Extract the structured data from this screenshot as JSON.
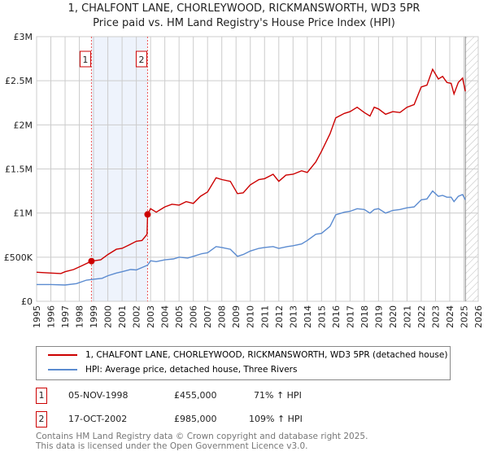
{
  "title": "1, CHALFONT LANE, CHORLEYWOOD, RICKMANSWORTH, WD3 5PR",
  "subtitle": "Price paid vs. HM Land Registry's House Price Index (HPI)",
  "colors": {
    "property": "#cc0000",
    "hpi": "#5b8bd0",
    "shade": "#eef3fc",
    "grid": "#cccccc"
  },
  "chart_data": {
    "type": "line",
    "xlim": [
      1995,
      2026
    ],
    "ylim": [
      0,
      3000000
    ],
    "x_ticks": [
      "1995",
      "1996",
      "1997",
      "1998",
      "1999",
      "2000",
      "2001",
      "2002",
      "2003",
      "2004",
      "2005",
      "2006",
      "2007",
      "2008",
      "2009",
      "2010",
      "2011",
      "2012",
      "2013",
      "2014",
      "2015",
      "2016",
      "2017",
      "2018",
      "2019",
      "2020",
      "2021",
      "2022",
      "2023",
      "2024",
      "2025",
      "2026"
    ],
    "y_ticks": [
      {
        "v": 0,
        "label": "£0"
      },
      {
        "v": 500000,
        "label": "£500K"
      },
      {
        "v": 1000000,
        "label": "£1M"
      },
      {
        "v": 1500000,
        "label": "£1.5M"
      },
      {
        "v": 2000000,
        "label": "£2M"
      },
      {
        "v": 2500000,
        "label": "£2.5M"
      },
      {
        "v": 3000000,
        "label": "£3M"
      }
    ],
    "shaded_range": [
      1998.85,
      2002.79
    ],
    "forecast_from": 2025.1,
    "series": [
      {
        "name": "1, CHALFONT LANE, CHORLEYWOOD, RICKMANSWORTH, WD3 5PR (detached house)",
        "color": "#cc0000",
        "points": [
          [
            1995,
            330000
          ],
          [
            1996,
            320000
          ],
          [
            1996.7,
            315000
          ],
          [
            1997,
            335000
          ],
          [
            1997.6,
            360000
          ],
          [
            1998.2,
            405000
          ],
          [
            1998.85,
            455000
          ],
          [
            1999.5,
            470000
          ],
          [
            2000,
            530000
          ],
          [
            2000.6,
            590000
          ],
          [
            2001,
            600000
          ],
          [
            2001.5,
            640000
          ],
          [
            2002,
            680000
          ],
          [
            2002.4,
            690000
          ],
          [
            2002.75,
            760000
          ],
          [
            2002.79,
            985000
          ],
          [
            2003,
            1050000
          ],
          [
            2003.4,
            1010000
          ],
          [
            2004,
            1070000
          ],
          [
            2004.5,
            1100000
          ],
          [
            2005,
            1090000
          ],
          [
            2005.5,
            1130000
          ],
          [
            2006,
            1110000
          ],
          [
            2006.5,
            1190000
          ],
          [
            2007,
            1240000
          ],
          [
            2007.6,
            1400000
          ],
          [
            2008,
            1380000
          ],
          [
            2008.6,
            1360000
          ],
          [
            2009.1,
            1220000
          ],
          [
            2009.5,
            1230000
          ],
          [
            2010,
            1320000
          ],
          [
            2010.6,
            1380000
          ],
          [
            2011,
            1390000
          ],
          [
            2011.6,
            1440000
          ],
          [
            2012,
            1360000
          ],
          [
            2012.5,
            1430000
          ],
          [
            2013,
            1440000
          ],
          [
            2013.6,
            1480000
          ],
          [
            2014,
            1460000
          ],
          [
            2014.6,
            1580000
          ],
          [
            2015,
            1700000
          ],
          [
            2015.6,
            1900000
          ],
          [
            2016,
            2080000
          ],
          [
            2016.6,
            2130000
          ],
          [
            2017,
            2150000
          ],
          [
            2017.5,
            2200000
          ],
          [
            2018,
            2140000
          ],
          [
            2018.4,
            2100000
          ],
          [
            2018.7,
            2200000
          ],
          [
            2019,
            2180000
          ],
          [
            2019.5,
            2120000
          ],
          [
            2020,
            2150000
          ],
          [
            2020.5,
            2140000
          ],
          [
            2021,
            2200000
          ],
          [
            2021.5,
            2230000
          ],
          [
            2022,
            2430000
          ],
          [
            2022.4,
            2450000
          ],
          [
            2022.8,
            2630000
          ],
          [
            2023.2,
            2520000
          ],
          [
            2023.5,
            2550000
          ],
          [
            2023.8,
            2480000
          ],
          [
            2024.1,
            2470000
          ],
          [
            2024.3,
            2350000
          ],
          [
            2024.6,
            2480000
          ],
          [
            2024.9,
            2530000
          ],
          [
            2025.1,
            2380000
          ]
        ]
      },
      {
        "name": "HPI: Average price, detached house, Three Rivers",
        "color": "#5b8bd0",
        "points": [
          [
            1995,
            190000
          ],
          [
            1996,
            190000
          ],
          [
            1997,
            185000
          ],
          [
            1997.8,
            200000
          ],
          [
            1998.5,
            240000
          ],
          [
            1999,
            250000
          ],
          [
            1999.6,
            260000
          ],
          [
            2000,
            290000
          ],
          [
            2000.6,
            320000
          ],
          [
            2001,
            335000
          ],
          [
            2001.6,
            360000
          ],
          [
            2002,
            355000
          ],
          [
            2002.79,
            410000
          ],
          [
            2003,
            460000
          ],
          [
            2003.4,
            450000
          ],
          [
            2004,
            470000
          ],
          [
            2004.6,
            480000
          ],
          [
            2005,
            500000
          ],
          [
            2005.6,
            490000
          ],
          [
            2006,
            510000
          ],
          [
            2006.6,
            540000
          ],
          [
            2007,
            550000
          ],
          [
            2007.6,
            620000
          ],
          [
            2008,
            610000
          ],
          [
            2008.6,
            590000
          ],
          [
            2009.1,
            510000
          ],
          [
            2009.5,
            530000
          ],
          [
            2010,
            570000
          ],
          [
            2010.6,
            600000
          ],
          [
            2011,
            610000
          ],
          [
            2011.6,
            620000
          ],
          [
            2012,
            600000
          ],
          [
            2012.6,
            620000
          ],
          [
            2013,
            630000
          ],
          [
            2013.6,
            650000
          ],
          [
            2014,
            690000
          ],
          [
            2014.6,
            760000
          ],
          [
            2015,
            770000
          ],
          [
            2015.6,
            850000
          ],
          [
            2016,
            980000
          ],
          [
            2016.6,
            1010000
          ],
          [
            2017,
            1020000
          ],
          [
            2017.5,
            1050000
          ],
          [
            2018,
            1040000
          ],
          [
            2018.4,
            1000000
          ],
          [
            2018.7,
            1040000
          ],
          [
            2019,
            1050000
          ],
          [
            2019.5,
            1000000
          ],
          [
            2020,
            1030000
          ],
          [
            2020.5,
            1040000
          ],
          [
            2021,
            1060000
          ],
          [
            2021.5,
            1070000
          ],
          [
            2022,
            1150000
          ],
          [
            2022.4,
            1160000
          ],
          [
            2022.8,
            1250000
          ],
          [
            2023.2,
            1190000
          ],
          [
            2023.5,
            1200000
          ],
          [
            2023.8,
            1180000
          ],
          [
            2024.1,
            1180000
          ],
          [
            2024.3,
            1130000
          ],
          [
            2024.6,
            1190000
          ],
          [
            2024.9,
            1210000
          ],
          [
            2025.1,
            1150000
          ]
        ]
      }
    ],
    "markers": [
      {
        "label": "1",
        "x": 1998.85,
        "y": 455000
      },
      {
        "label": "2",
        "x": 2002.79,
        "y": 985000
      }
    ]
  },
  "sales": [
    {
      "num": "1",
      "date": "05-NOV-1998",
      "price": "£455,000",
      "hpi": "71% ↑ HPI"
    },
    {
      "num": "2",
      "date": "17-OCT-2002",
      "price": "£985,000",
      "hpi": "109% ↑ HPI"
    }
  ],
  "footer": {
    "line1": "Contains HM Land Registry data © Crown copyright and database right 2025.",
    "line2": "This data is licensed under the Open Government Licence v3.0."
  }
}
